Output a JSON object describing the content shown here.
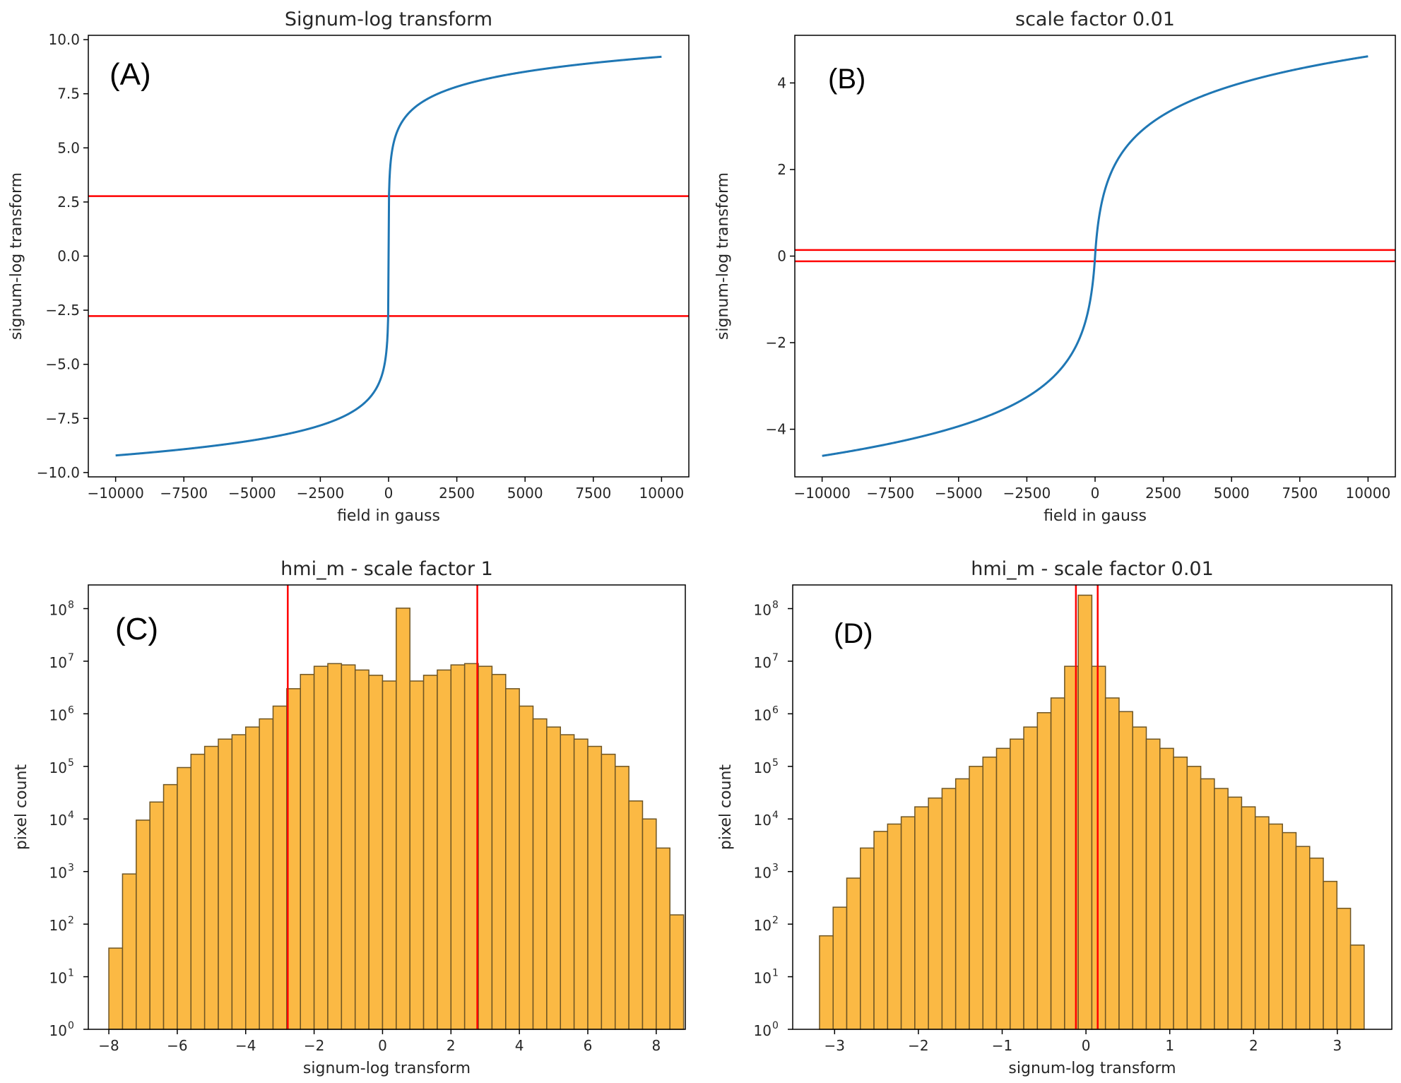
{
  "chart_data": [
    {
      "panel": "(A)",
      "type": "line",
      "title": "Signum-log transform",
      "xlabel": "field in gauss",
      "ylabel": "signum-log transform",
      "xlim": [
        -11000,
        11000
      ],
      "ylim": [
        -10.2,
        10.2
      ],
      "xticks": [
        -10000,
        -7500,
        -5000,
        -2500,
        0,
        2500,
        5000,
        7500,
        10000
      ],
      "xtick_labels": [
        "−10000",
        "−7500",
        "−5000",
        "−2500",
        "0",
        "2500",
        "5000",
        "7500",
        "10000"
      ],
      "yticks": [
        10,
        7.5,
        5,
        2.5,
        0,
        -2.5,
        -5,
        -7.5,
        -10
      ],
      "ytick_labels": [
        "10.0",
        "7.5",
        "5.0",
        "2.5",
        "0.0",
        "−2.5",
        "−5.0",
        "−7.5",
        "−10.0"
      ],
      "curve": {
        "function": "sign(x)*ln(1+|x|/s)",
        "s": 1,
        "x_range": [
          -10000,
          10000
        ],
        "color": "#1f77b4"
      },
      "hlines": [
        2.77,
        -2.77
      ],
      "hline_color": "#ff0000"
    },
    {
      "panel": "(B)",
      "type": "line",
      "title": "scale factor 0.01",
      "xlabel": "field in gauss",
      "ylabel": "signum-log transform",
      "xlim": [
        -11000,
        11000
      ],
      "ylim": [
        -5.1,
        5.1
      ],
      "xticks": [
        -10000,
        -7500,
        -5000,
        -2500,
        0,
        2500,
        5000,
        7500,
        10000
      ],
      "xtick_labels": [
        "−10000",
        "−7500",
        "−5000",
        "−2500",
        "0",
        "2500",
        "5000",
        "7500",
        "10000"
      ],
      "yticks": [
        4,
        2,
        0,
        -2,
        -4
      ],
      "ytick_labels": [
        "4",
        "2",
        "0",
        "−2",
        "−4"
      ],
      "curve": {
        "function": "sign(x)*ln(1+|x|/s)",
        "s": 100,
        "x_range": [
          -10000,
          10000
        ],
        "color": "#1f77b4"
      },
      "hlines": [
        0.14,
        -0.12
      ],
      "hline_color": "#ff0000"
    },
    {
      "panel": "(C)",
      "type": "bar",
      "title": "hmi_m - scale factor 1",
      "xlabel": "signum-log transform",
      "ylabel": "pixel count",
      "yscale": "log",
      "xlim": [
        -8.6,
        8.85
      ],
      "ylim_exp": [
        0,
        8.45
      ],
      "xticks": [
        -8,
        -6,
        -4,
        -2,
        0,
        2,
        4,
        6,
        8
      ],
      "xtick_labels": [
        "−8",
        "−6",
        "−4",
        "−2",
        "0",
        "2",
        "4",
        "6",
        "8"
      ],
      "ytick_exponents": [
        0,
        1,
        2,
        3,
        4,
        5,
        6,
        7,
        8
      ],
      "ytick_base": "10",
      "bins": {
        "start": -8.0,
        "width": 0.4
      },
      "values": [
        35,
        900,
        9500,
        21000,
        45000,
        95000,
        170000,
        240000,
        330000,
        400000,
        560000,
        800000,
        1400000,
        3000000,
        5600000,
        8000000,
        9000000,
        8500000,
        6800000,
        5400000,
        4200000,
        102000000,
        4200000,
        5400000,
        6800000,
        8500000,
        9000000,
        8000000,
        5600000,
        3000000,
        1400000,
        800000,
        560000,
        400000,
        330000,
        240000,
        170000,
        100000,
        22000,
        10000,
        2800,
        150
      ],
      "bar_color": "#fbb944",
      "edge_color": "#6e5524",
      "vlines": [
        -2.77,
        2.77
      ],
      "vline_color": "#ff0000"
    },
    {
      "panel": "(D)",
      "type": "bar",
      "title": "hmi_m - scale factor 0.01",
      "xlabel": "signum-log transform",
      "ylabel": "pixel count",
      "yscale": "log",
      "xlim": [
        -3.5,
        3.65
      ],
      "ylim_exp": [
        0,
        8.45
      ],
      "xticks": [
        -3,
        -2,
        -1,
        0,
        1,
        2,
        3
      ],
      "xtick_labels": [
        "−3",
        "−2",
        "−1",
        "0",
        "1",
        "2",
        "3"
      ],
      "ytick_exponents": [
        0,
        1,
        2,
        3,
        4,
        5,
        6,
        7,
        8
      ],
      "ytick_base": "10",
      "bins": {
        "start": -3.18,
        "width": 0.1625
      },
      "values": [
        60,
        210,
        750,
        2800,
        5800,
        8000,
        11000,
        17000,
        25000,
        38000,
        58000,
        100000,
        150000,
        220000,
        330000,
        560000,
        1050000,
        2000000,
        8000000,
        180000000,
        8000000,
        2000000,
        1100000,
        560000,
        330000,
        220000,
        150000,
        100000,
        58000,
        38000,
        26000,
        17000,
        11000,
        8000,
        5500,
        3000,
        1800,
        650,
        200,
        40
      ],
      "bar_color": "#fbb944",
      "edge_color": "#6e5524",
      "vlines": [
        -0.12,
        0.14
      ],
      "vline_color": "#ff0000"
    }
  ]
}
